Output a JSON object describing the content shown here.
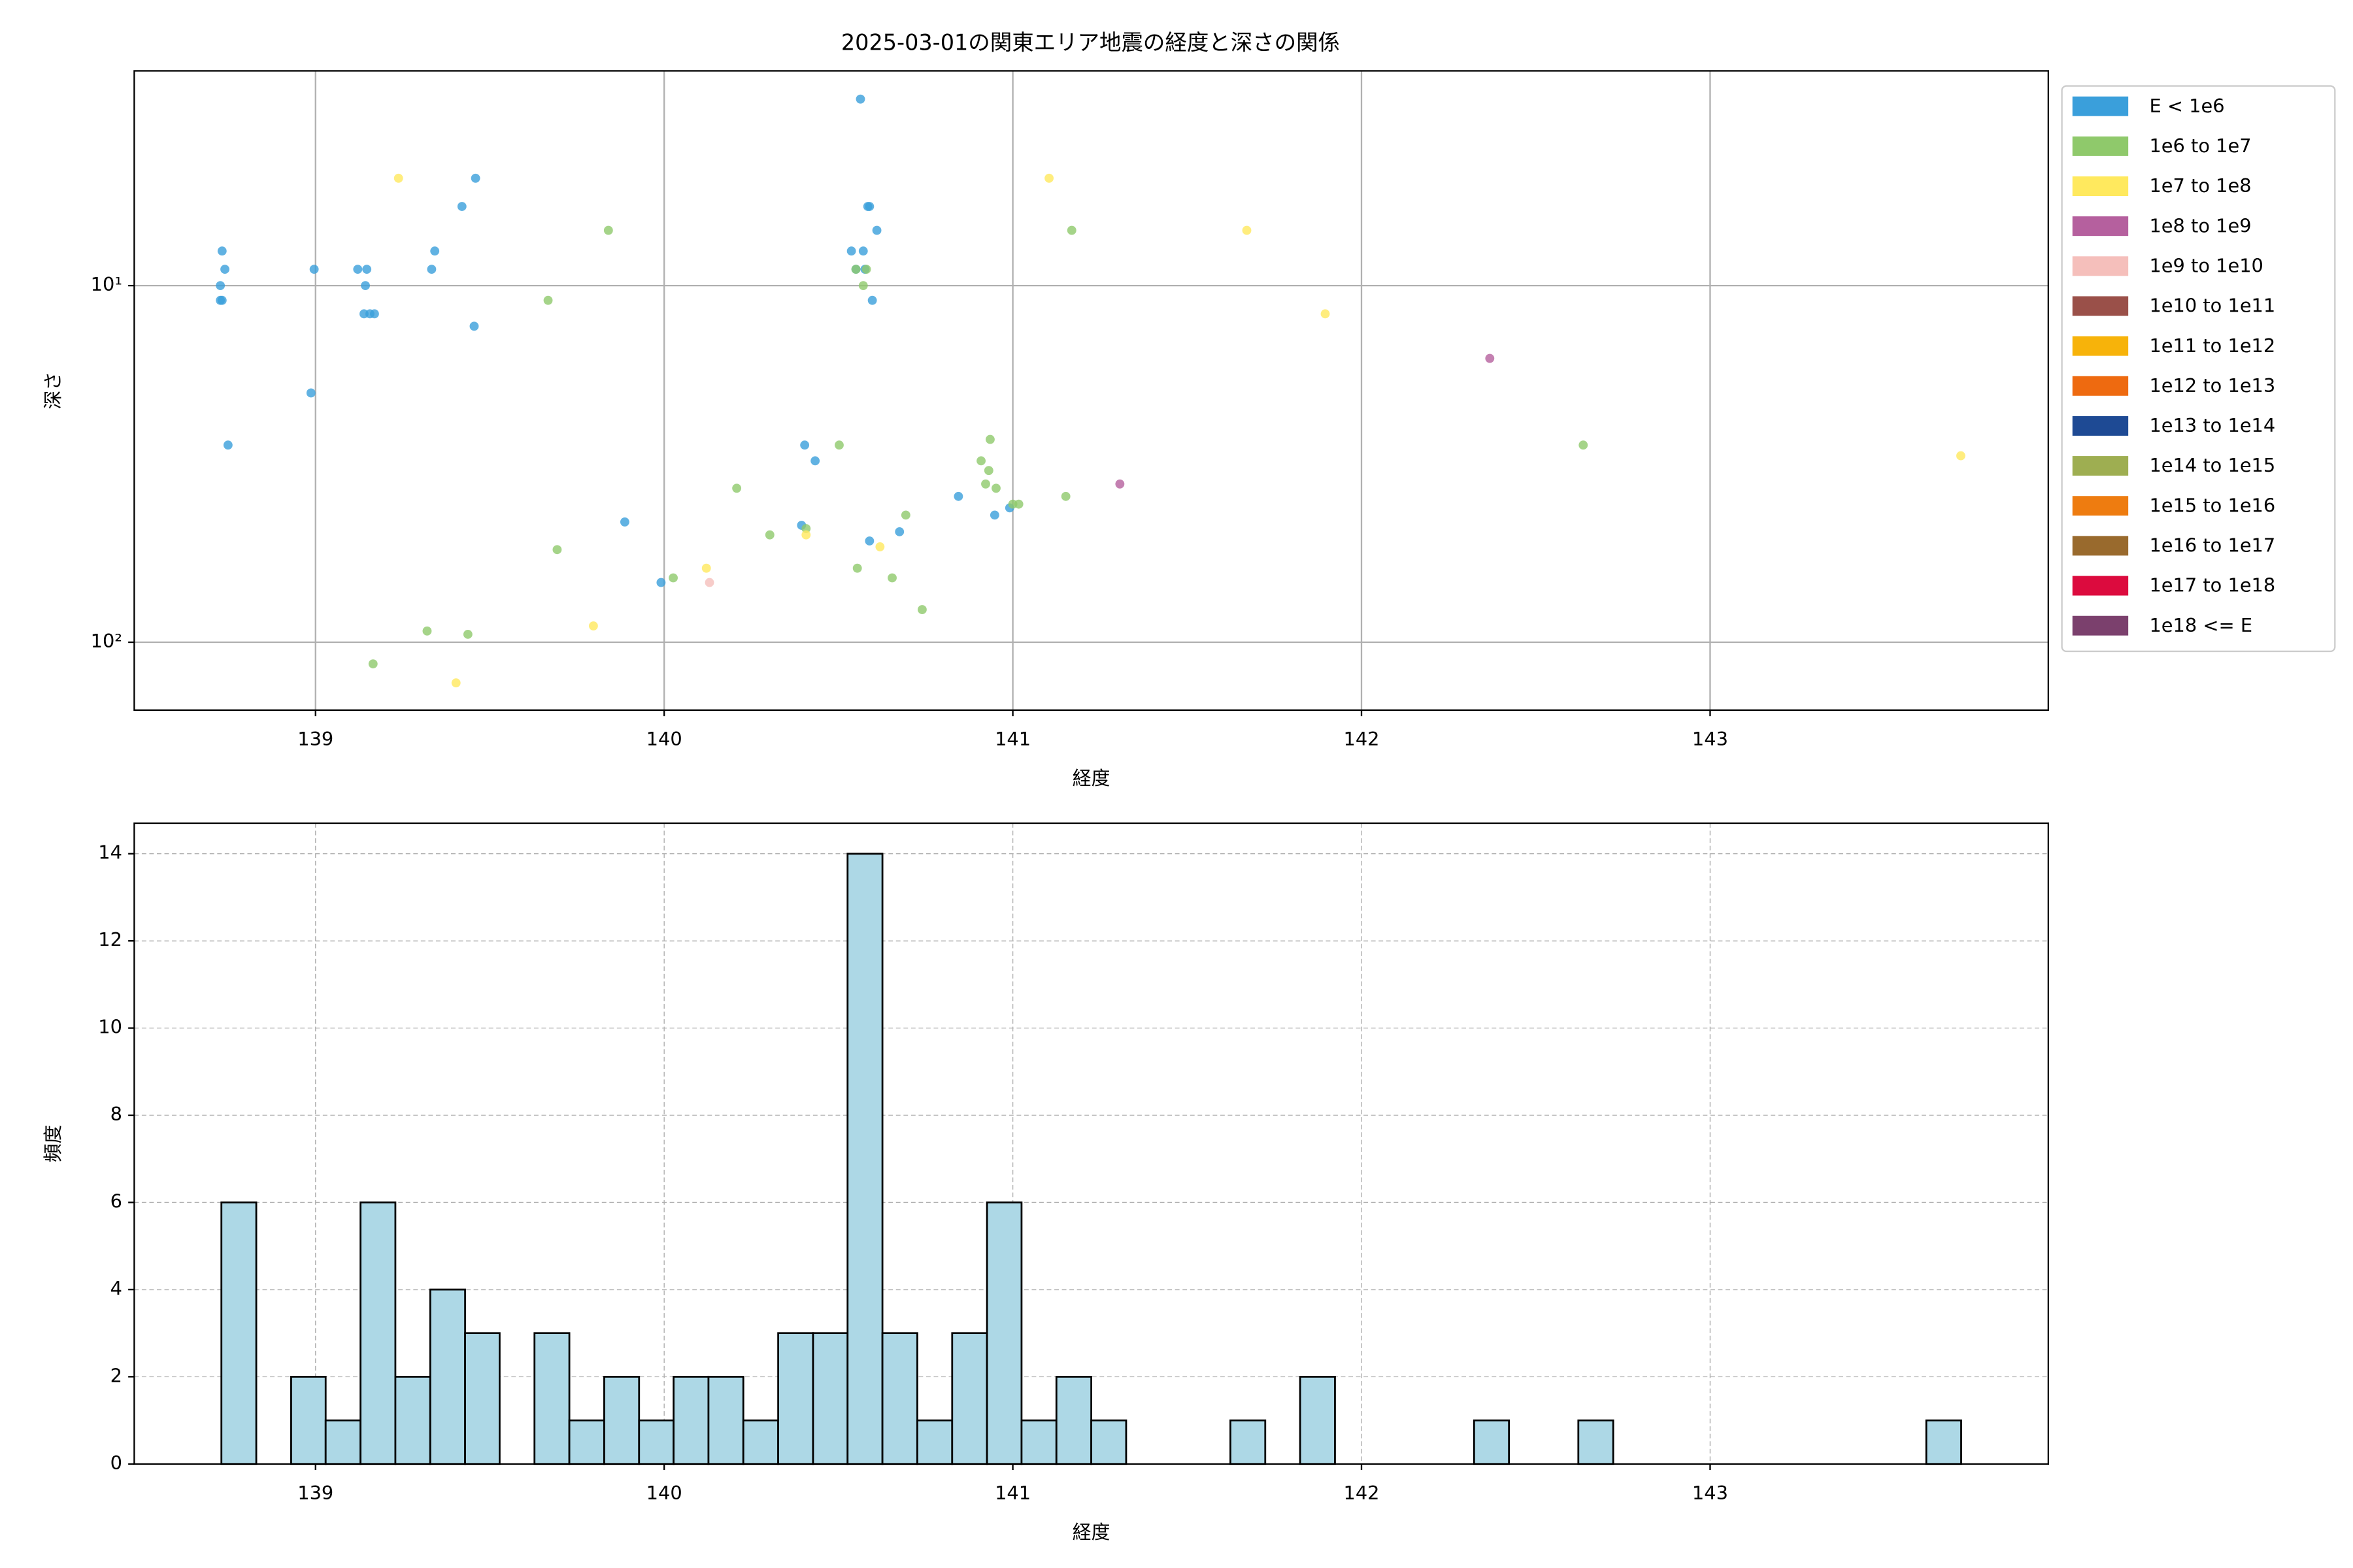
{
  "chart_data": [
    {
      "type": "scatter",
      "title": "2025-03-01の関東エリア地震の経度と深さの関係",
      "xlabel": "経度",
      "ylabel": "深さ",
      "xlim": [
        138.48,
        143.97
      ],
      "xticks": [
        139,
        140,
        141,
        142,
        143
      ],
      "ylim": [
        155,
        2.5
      ],
      "yscale": "log",
      "yticks": [
        {
          "value": 10,
          "label": "10¹"
        },
        {
          "value": 100,
          "label": "10²"
        }
      ],
      "grid": true,
      "legend": "outside right",
      "series": [
        {
          "name": "E < 1e6",
          "color": "#3a9fdb",
          "x": [
            138.732,
            138.74,
            138.727,
            138.727,
            138.732,
            138.749,
            138.996,
            138.987,
            139.121,
            139.147,
            139.143,
            139.139,
            139.156,
            139.169,
            139.333,
            139.342,
            139.42,
            139.459,
            139.455,
            140.563,
            140.584,
            140.589,
            140.537,
            140.571,
            140.61,
            140.55,
            140.576,
            140.597,
            140.403,
            140.433,
            139.887,
            139.991,
            140.394,
            140.589,
            140.675,
            140.844,
            140.948,
            140.991
          ],
          "values": [
            8,
            9,
            10,
            11,
            11,
            28,
            9,
            20,
            9,
            9,
            10,
            12,
            12,
            12,
            9,
            8,
            6,
            5,
            13,
            3,
            6,
            6,
            8,
            8,
            7,
            9,
            9,
            11,
            28,
            31,
            46,
            68,
            47,
            52,
            49,
            39,
            44,
            42
          ]
        },
        {
          "name": "1e6 to 1e7",
          "color": "#8fc96b",
          "x": [
            139.84,
            139.667,
            139.693,
            140.026,
            140.208,
            140.303,
            140.407,
            140.502,
            140.571,
            140.55,
            140.58,
            140.554,
            140.654,
            140.693,
            140.74,
            140.909,
            140.922,
            140.935,
            140.931,
            140.952,
            141.0,
            141.017,
            141.152,
            141.169,
            142.636,
            139.165,
            139.32,
            139.437
          ],
          "values": [
            7,
            11,
            55,
            66,
            37,
            50,
            48,
            28,
            10,
            9,
            9,
            62,
            66,
            44,
            81,
            31,
            36,
            27,
            33,
            37,
            41,
            41,
            39,
            7,
            28,
            115,
            93,
            95
          ]
        },
        {
          "name": "1e7 to 1e8",
          "color": "#ffe95e",
          "x": [
            139.238,
            139.403,
            139.797,
            140.121,
            140.407,
            140.619,
            141.104,
            141.671,
            141.896,
            143.719
          ],
          "values": [
            5,
            130,
            90,
            62,
            50,
            54,
            5,
            7,
            12,
            30
          ]
        },
        {
          "name": "1e8 to 1e9",
          "color": "#b5609e",
          "x": [
            141.307,
            142.368
          ],
          "values": [
            36,
            16
          ]
        },
        {
          "name": "1e9 to 1e10",
          "color": "#f5bfbb",
          "x": [
            140.13
          ],
          "values": [
            68
          ]
        },
        {
          "name": "1e10 to 1e11",
          "color": "#9a5049",
          "x": [],
          "values": []
        },
        {
          "name": "1e11 to 1e12",
          "color": "#f7b30a",
          "x": [],
          "values": []
        },
        {
          "name": "1e12 to 1e13",
          "color": "#ee6a10",
          "x": [],
          "values": []
        },
        {
          "name": "1e13 to 1e14",
          "color": "#1e4a94",
          "x": [],
          "values": []
        },
        {
          "name": "1e14 to 1e15",
          "color": "#9eae51",
          "x": [],
          "values": []
        },
        {
          "name": "1e15 to 1e16",
          "color": "#ee7c10",
          "x": [],
          "values": []
        },
        {
          "name": "1e16 to 1e17",
          "color": "#996a2d",
          "x": [],
          "values": []
        },
        {
          "name": "1e17 to 1e18",
          "color": "#dc0b3e",
          "x": [],
          "values": []
        },
        {
          "name": "1e18 <= E",
          "color": "#7b406d",
          "x": [],
          "values": []
        }
      ]
    },
    {
      "type": "histogram",
      "xlabel": "経度",
      "ylabel": "頻度",
      "color": "#add8e6",
      "edgecolor": "#000000",
      "xlim": [
        138.48,
        143.97
      ],
      "xticks": [
        139,
        140,
        141,
        142,
        143
      ],
      "ylim": [
        0,
        14.7
      ],
      "yticks": [
        0,
        2,
        4,
        6,
        8,
        10,
        12,
        14
      ],
      "grid": "dashed",
      "bins": [
        138.73,
        138.83,
        138.93,
        139.029,
        139.129,
        139.229,
        139.329,
        139.429,
        139.528,
        139.628,
        139.728,
        139.828,
        139.928,
        140.027,
        140.127,
        140.227,
        140.327,
        140.427,
        140.526,
        140.626,
        140.726,
        140.826,
        140.926,
        141.025,
        141.125,
        141.225,
        141.325,
        141.425,
        141.524,
        141.624,
        141.724,
        141.824,
        141.924,
        142.023,
        142.123,
        142.223,
        142.323,
        142.423,
        142.522,
        142.622,
        142.722,
        142.822,
        142.922,
        143.021,
        143.121,
        143.221,
        143.321,
        143.421,
        143.52,
        143.62,
        143.72
      ],
      "values": [
        6,
        0,
        2,
        1,
        6,
        2,
        4,
        3,
        0,
        3,
        1,
        2,
        1,
        2,
        2,
        1,
        3,
        3,
        14,
        3,
        1,
        3,
        6,
        1,
        2,
        1,
        0,
        0,
        0,
        1,
        0,
        2,
        0,
        0,
        0,
        0,
        1,
        0,
        0,
        1,
        0,
        0,
        0,
        0,
        0,
        0,
        0,
        0,
        0,
        1
      ]
    }
  ]
}
